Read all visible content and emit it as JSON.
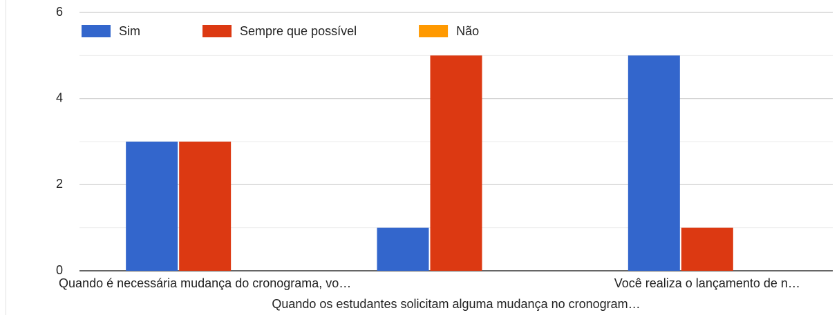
{
  "chart_data": {
    "type": "bar",
    "categories": [
      "Quando é necessária mudança do cronograma, vo…",
      "Quando os estudantes solicitam alguma mudança no cronogram…",
      "Você realiza o lançamento de n…"
    ],
    "series": [
      {
        "name": "Sim",
        "color": "#3366cc",
        "values": [
          3,
          1,
          5
        ]
      },
      {
        "name": "Sempre que possível",
        "color": "#dc3912",
        "values": [
          3,
          5,
          1
        ]
      },
      {
        "name": "Não",
        "color": "#ff9900",
        "values": [
          0,
          0,
          0
        ]
      }
    ],
    "ylim": [
      0,
      6
    ],
    "yticks": [
      0,
      2,
      4,
      6
    ],
    "minor_yticks": [
      1,
      3,
      5
    ],
    "grid": true,
    "legend": "top"
  }
}
